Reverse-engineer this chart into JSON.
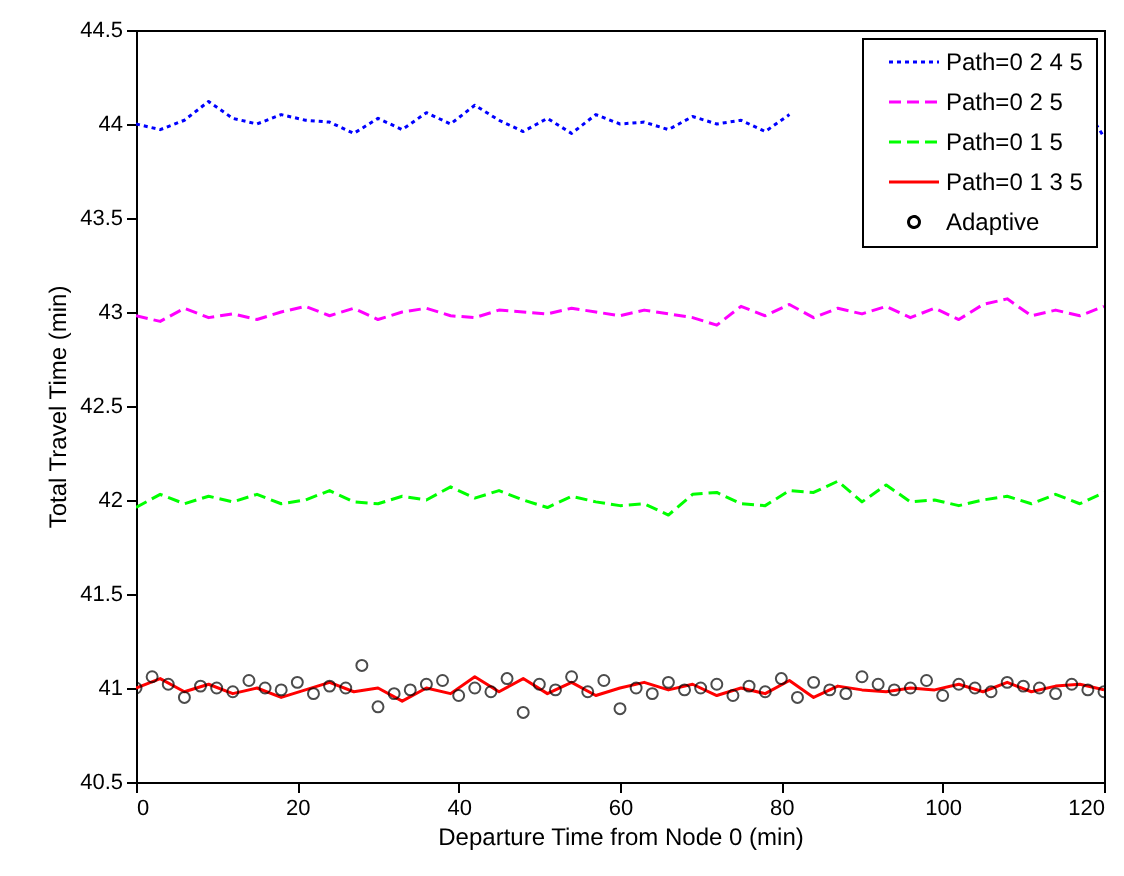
{
  "chart_data": {
    "type": "line",
    "xlabel": "Departure Time from Node 0 (min)",
    "ylabel": "Total Travel Time (min)",
    "xlim": [
      0,
      120
    ],
    "ylim": [
      40.5,
      44.5
    ],
    "xticks": [
      0,
      20,
      40,
      60,
      80,
      100,
      120
    ],
    "yticks": [
      40.5,
      41,
      41.5,
      42,
      42.5,
      43,
      43.5,
      44,
      44.5
    ],
    "legend": "top right",
    "grid": false,
    "series": [
      {
        "name": "Path=0 2 4 5",
        "color": "#0000ff",
        "line_style": "dotted",
        "x": [
          0,
          3,
          6,
          9,
          12,
          15,
          18,
          21,
          24,
          27,
          30,
          33,
          36,
          39,
          42,
          45,
          48,
          51,
          54,
          57,
          60,
          63,
          66,
          69,
          72,
          75,
          78,
          81,
          84,
          119,
          120
        ],
        "values": [
          44.0,
          43.97,
          44.02,
          44.12,
          44.03,
          44.0,
          44.05,
          44.02,
          44.01,
          43.95,
          44.03,
          43.97,
          44.06,
          44.0,
          44.1,
          44.02,
          43.96,
          44.03,
          43.95,
          44.05,
          44.0,
          44.01,
          43.97,
          44.04,
          44.0,
          44.02,
          43.96,
          44.05,
          null,
          44.0,
          43.93
        ]
      },
      {
        "name": "Path=0 2 5",
        "color": "#ff00ff",
        "line_style": "dashed",
        "x": [
          0,
          3,
          6,
          9,
          12,
          15,
          18,
          21,
          24,
          27,
          30,
          33,
          36,
          39,
          42,
          45,
          48,
          51,
          54,
          57,
          60,
          63,
          66,
          69,
          72,
          75,
          78,
          81,
          84,
          87,
          90,
          93,
          96,
          99,
          102,
          105,
          108,
          111,
          114,
          117,
          120
        ],
        "values": [
          42.98,
          42.95,
          43.02,
          42.97,
          42.99,
          42.96,
          43.0,
          43.03,
          42.98,
          43.02,
          42.96,
          43.0,
          43.02,
          42.98,
          42.97,
          43.01,
          43.0,
          42.99,
          43.02,
          43.0,
          42.98,
          43.01,
          42.99,
          42.97,
          42.93,
          43.03,
          42.98,
          43.04,
          42.97,
          43.02,
          42.99,
          43.03,
          42.97,
          43.02,
          42.96,
          43.04,
          43.07,
          42.98,
          43.01,
          42.98,
          43.03
        ]
      },
      {
        "name": "Path=0 1 5",
        "color": "#00ff00",
        "line_style": "dashed",
        "x": [
          0,
          3,
          6,
          9,
          12,
          15,
          18,
          21,
          24,
          27,
          30,
          33,
          36,
          39,
          42,
          45,
          48,
          51,
          54,
          57,
          60,
          63,
          66,
          69,
          72,
          75,
          78,
          81,
          84,
          87,
          90,
          93,
          96,
          99,
          102,
          105,
          108,
          111,
          114,
          117,
          120
        ],
        "values": [
          41.96,
          42.03,
          41.98,
          42.02,
          41.99,
          42.03,
          41.98,
          42.0,
          42.05,
          41.99,
          41.98,
          42.02,
          42.0,
          42.07,
          42.01,
          42.05,
          42.0,
          41.96,
          42.02,
          41.99,
          41.97,
          41.98,
          41.92,
          42.03,
          42.04,
          41.98,
          41.97,
          42.05,
          42.04,
          42.1,
          41.99,
          42.08,
          41.99,
          42.0,
          41.97,
          42.0,
          42.02,
          41.98,
          42.03,
          41.98,
          42.04
        ]
      },
      {
        "name": "Path=0 1 3 5",
        "color": "#ff0000",
        "line_style": "solid",
        "x": [
          0,
          3,
          6,
          9,
          12,
          15,
          18,
          21,
          24,
          27,
          30,
          33,
          36,
          39,
          42,
          45,
          48,
          51,
          54,
          57,
          60,
          63,
          66,
          69,
          72,
          75,
          78,
          81,
          84,
          87,
          90,
          93,
          96,
          99,
          102,
          105,
          108,
          111,
          114,
          117,
          120
        ],
        "values": [
          41.0,
          41.05,
          40.98,
          41.02,
          40.97,
          41.0,
          40.95,
          40.99,
          41.03,
          40.98,
          41.0,
          40.93,
          41.0,
          40.97,
          41.06,
          40.98,
          41.05,
          40.97,
          41.03,
          40.96,
          41.0,
          41.03,
          40.99,
          41.02,
          40.96,
          41.0,
          40.97,
          41.04,
          40.95,
          41.01,
          40.99,
          40.98,
          41.0,
          40.99,
          41.02,
          40.98,
          41.03,
          40.98,
          41.01,
          41.02,
          40.99
        ]
      },
      {
        "name": "Adaptive",
        "color": "#000000",
        "type": "scatter",
        "marker": "circle",
        "x": [
          0,
          2,
          4,
          6,
          8,
          10,
          12,
          14,
          16,
          18,
          20,
          22,
          24,
          26,
          28,
          30,
          32,
          34,
          36,
          38,
          40,
          42,
          44,
          46,
          48,
          50,
          52,
          54,
          56,
          58,
          60,
          62,
          64,
          66,
          68,
          70,
          72,
          74,
          76,
          78,
          80,
          82,
          84,
          86,
          88,
          90,
          92,
          94,
          96,
          98,
          100,
          102,
          104,
          106,
          108,
          110,
          112,
          114,
          116,
          118,
          120
        ],
        "values": [
          41.0,
          41.06,
          41.02,
          40.95,
          41.01,
          41.0,
          40.98,
          41.04,
          41.0,
          40.99,
          41.03,
          40.97,
          41.01,
          41.0,
          41.12,
          40.9,
          40.97,
          40.99,
          41.02,
          41.04,
          40.96,
          41.0,
          40.98,
          41.05,
          40.87,
          41.02,
          40.99,
          41.06,
          40.98,
          41.04,
          40.89,
          41.0,
          40.97,
          41.03,
          40.99,
          41.0,
          41.02,
          40.96,
          41.01,
          40.98,
          41.05,
          40.95,
          41.03,
          40.99,
          40.97,
          41.06,
          41.02,
          40.99,
          41.0,
          41.04,
          40.96,
          41.02,
          41.0,
          40.98,
          41.03,
          41.01,
          41.0,
          40.97,
          41.02,
          40.99,
          40.98
        ]
      }
    ]
  }
}
